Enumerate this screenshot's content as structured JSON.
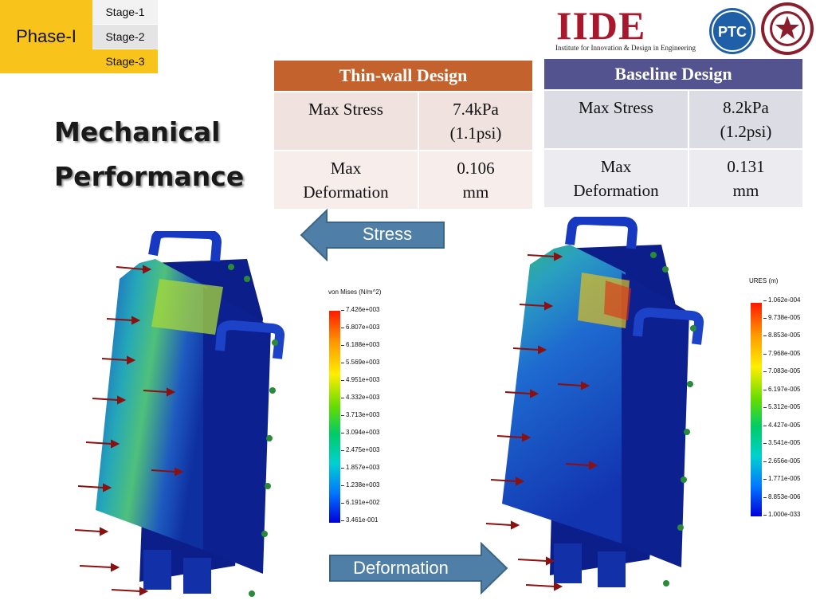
{
  "phase": {
    "label": "Phase-I",
    "stages": [
      "Stage-1",
      "Stage-2",
      "Stage-3"
    ]
  },
  "logos": {
    "iide": "IIDE",
    "iide_subtitle": "Institute for Innovation & Design in Engineering",
    "ptc": "PTC"
  },
  "title": {
    "line1": "Mechanical",
    "line2": "Performance"
  },
  "thin_wall": {
    "header": "Thin-wall Design",
    "rows": [
      {
        "label": "Max Stress",
        "value_line1": "7.4kPa",
        "value_line2": "(1.1psi)"
      },
      {
        "label_line1": "Max",
        "label_line2": "Deformation",
        "value_line1": "0.106",
        "value_line2": "mm"
      }
    ]
  },
  "baseline": {
    "header": "Baseline Design",
    "rows": [
      {
        "label": "Max Stress",
        "value_line1": "8.2kPa",
        "value_line2": "(1.2psi)"
      },
      {
        "label_line1": "Max",
        "label_line2": "Deformation",
        "value_line1": "0.131",
        "value_line2": "mm"
      }
    ]
  },
  "arrows": {
    "stress": "Stress",
    "deformation": "Deformation"
  },
  "stress_legend": {
    "title": "von Mises (N/m^2)",
    "ticks": [
      "7.426e+003",
      "6.807e+003",
      "6.188e+003",
      "5.569e+003",
      "4.951e+003",
      "4.332e+003",
      "3.713e+003",
      "3.094e+003",
      "2.475e+003",
      "1.857e+003",
      "1.238e+003",
      "6.191e+002",
      "3.461e-001"
    ]
  },
  "deformation_legend": {
    "title": "URES (m)",
    "ticks": [
      "1.062e-004",
      "9.738e-005",
      "8.853e-005",
      "7.968e-005",
      "7.083e-005",
      "6.197e-005",
      "5.312e-005",
      "4.427e-005",
      "3.541e-005",
      "2.656e-005",
      "1.771e-005",
      "8.853e-006",
      "1.000e-033"
    ]
  },
  "colors": {
    "phase_yellow": "#f8c31b",
    "thin_header": "#c4622d",
    "baseline_header": "#535390",
    "arrow_blue": "#4f7fa6",
    "iide_red": "#a8182c"
  }
}
